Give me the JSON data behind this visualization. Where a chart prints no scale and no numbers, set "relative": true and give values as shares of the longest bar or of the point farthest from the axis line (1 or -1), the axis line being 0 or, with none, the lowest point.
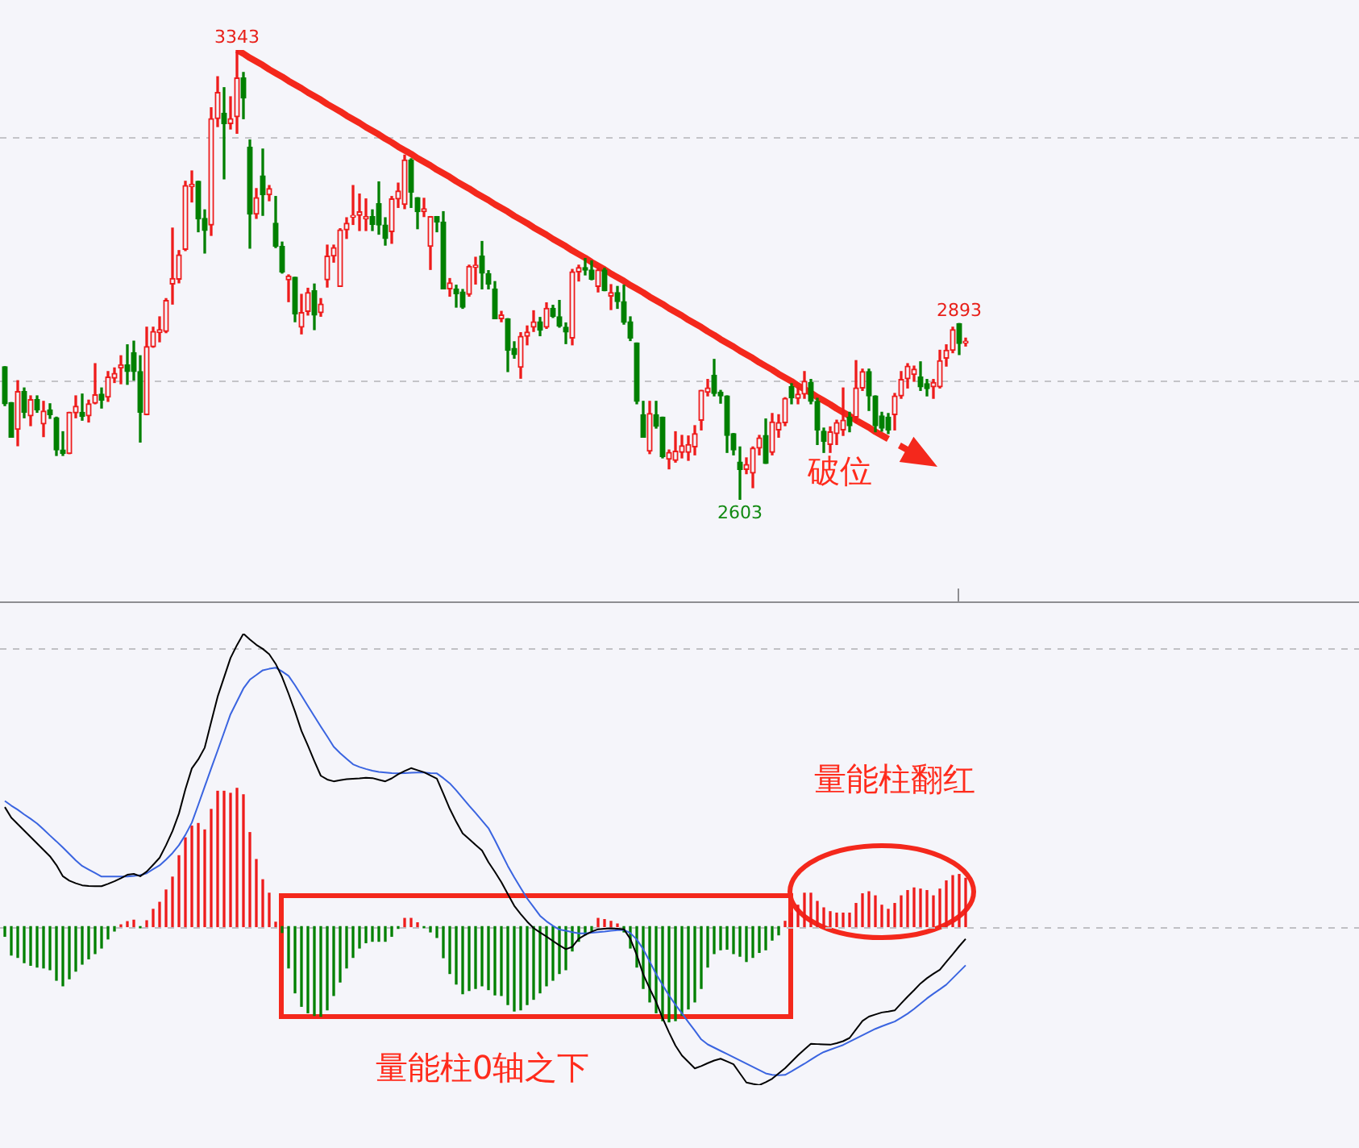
{
  "chart_data": [
    {
      "type": "candlestick",
      "tick_labels": false,
      "grid": "y",
      "categories": [
        null,
        null,
        null,
        null,
        null,
        null,
        null,
        null,
        null,
        null,
        null,
        null,
        null,
        null,
        null,
        null,
        null,
        null,
        null,
        null,
        null,
        null,
        null,
        null,
        null,
        null,
        null,
        null,
        null,
        null,
        null,
        null,
        null,
        null,
        null,
        null,
        null,
        null,
        null,
        null,
        null,
        null,
        null,
        null,
        null,
        null,
        null,
        null,
        null,
        null,
        null,
        null,
        null,
        null,
        null,
        null,
        null,
        null,
        null,
        null,
        null,
        null,
        null,
        null,
        null,
        null,
        null,
        null,
        null,
        null,
        null,
        null,
        null,
        null,
        null,
        null,
        null,
        null,
        null,
        null,
        null,
        null,
        null,
        null,
        null,
        null,
        null,
        null,
        null,
        null,
        null,
        null,
        null,
        null,
        null,
        null,
        null,
        null,
        null,
        null,
        null,
        null,
        null,
        null,
        null,
        null,
        null,
        null,
        null,
        null,
        null,
        null,
        null,
        null,
        null,
        null,
        null,
        null,
        null,
        null,
        null,
        null,
        null,
        null,
        null,
        null,
        null,
        null,
        null,
        null,
        null,
        null,
        null,
        null,
        null,
        null,
        null,
        null,
        null,
        null,
        null,
        null,
        null,
        null,
        null,
        null,
        null,
        null,
        null,
        null
      ],
      "ohlc": [
        [
          2822,
          2822,
          2758,
          2761
        ],
        [
          2763,
          2763,
          2706,
          2706
        ],
        [
          2719,
          2799,
          2692,
          2781
        ],
        [
          2781,
          2787,
          2738,
          2747
        ],
        [
          2741,
          2774,
          2725,
          2768
        ],
        [
          2768,
          2774,
          2747,
          2751
        ],
        [
          2728,
          2765,
          2707,
          2749
        ],
        [
          2751,
          2761,
          2737,
          2743
        ],
        [
          2738,
          2739,
          2676,
          2685
        ],
        [
          2685,
          2715,
          2676,
          2679
        ],
        [
          2679,
          2747,
          2679,
          2747
        ],
        [
          2746,
          2774,
          2738,
          2757
        ],
        [
          2747,
          2777,
          2734,
          2740
        ],
        [
          2741,
          2767,
          2731,
          2761
        ],
        [
          2762,
          2827,
          2761,
          2776
        ],
        [
          2777,
          2787,
          2754,
          2767
        ],
        [
          2772,
          2814,
          2765,
          2805
        ],
        [
          2803,
          2820,
          2796,
          2811
        ],
        [
          2820,
          2840,
          2794,
          2825
        ],
        [
          2825,
          2858,
          2793,
          2814
        ],
        [
          2845,
          2864,
          2800,
          2814
        ],
        [
          2814,
          2840,
          2698,
          2747
        ],
        [
          2743,
          2887,
          2743,
          2855
        ],
        [
          2855,
          2887,
          2854,
          2880
        ],
        [
          2878,
          2904,
          2863,
          2883
        ],
        [
          2880,
          2934,
          2878,
          2931
        ],
        [
          2958,
          3050,
          2925,
          2967
        ],
        [
          2966,
          3013,
          2960,
          3006
        ],
        [
          3015,
          3127,
          3013,
          3120
        ],
        [
          3118,
          3144,
          3093,
          3122
        ],
        [
          3127,
          3127,
          3044,
          3065
        ],
        [
          3066,
          3080,
          3009,
          3046
        ],
        [
          3055,
          3248,
          3038,
          3230
        ],
        [
          3230,
          3299,
          3217,
          3273
        ],
        [
          3239,
          3281,
          3131,
          3222
        ],
        [
          3222,
          3266,
          3213,
          3230
        ],
        [
          3233,
          3343,
          3206,
          3297
        ],
        [
          3297,
          3306,
          3230,
          3264
        ],
        [
          3183,
          3195,
          3017,
          3073
        ],
        [
          3073,
          3115,
          3066,
          3100
        ],
        [
          3136,
          3180,
          3071,
          3105
        ],
        [
          3105,
          3120,
          3095,
          3115
        ],
        [
          3058,
          3102,
          3018,
          3020
        ],
        [
          3020,
          3027,
          2976,
          2978
        ],
        [
          2965,
          2973,
          2929,
          2971
        ],
        [
          2969,
          2969,
          2896,
          2909
        ],
        [
          2887,
          2941,
          2876,
          2911
        ],
        [
          2913,
          2951,
          2907,
          2944
        ],
        [
          2947,
          2958,
          2883,
          2907
        ],
        [
          2911,
          2934,
          2905,
          2925
        ],
        [
          2965,
          3022,
          2953,
          3004
        ],
        [
          3004,
          3022,
          2994,
          3018
        ],
        [
          2954,
          3049,
          2954,
          3047
        ],
        [
          3047,
          3067,
          3033,
          3058
        ],
        [
          3068,
          3120,
          3056,
          3071
        ],
        [
          3071,
          3106,
          3046,
          3077
        ],
        [
          3065,
          3098,
          3046,
          3069
        ],
        [
          3069,
          3080,
          3046,
          3056
        ],
        [
          3090,
          3126,
          3040,
          3055
        ],
        [
          3055,
          3067,
          3022,
          3033
        ],
        [
          3044,
          3102,
          3025,
          3098
        ],
        [
          3098,
          3124,
          3084,
          3111
        ],
        [
          3089,
          3170,
          3082,
          3162
        ],
        [
          3162,
          3164,
          3084,
          3109
        ],
        [
          3100,
          3100,
          3049,
          3077
        ],
        [
          3077,
          3099,
          3069,
          3082
        ],
        [
          3020,
          3069,
          2982,
          3069
        ],
        [
          3069,
          3069,
          3044,
          3060
        ],
        [
          3060,
          3077,
          2950,
          2950
        ],
        [
          2950,
          2967,
          2938,
          2960
        ],
        [
          2950,
          2956,
          2920,
          2942
        ],
        [
          2945,
          2949,
          2918,
          2920
        ],
        [
          2941,
          2989,
          2938,
          2987
        ],
        [
          2985,
          3002,
          2958,
          2989
        ],
        [
          3004,
          3028,
          2950,
          2976
        ],
        [
          2975,
          2980,
          2950,
          2958
        ],
        [
          2950,
          2962,
          2901,
          2901
        ],
        [
          2901,
          2913,
          2896,
          2907
        ],
        [
          2901,
          2901,
          2814,
          2849
        ],
        [
          2852,
          2863,
          2836,
          2842
        ],
        [
          2821,
          2878,
          2803,
          2872
        ],
        [
          2872,
          2889,
          2858,
          2879
        ],
        [
          2887,
          2914,
          2880,
          2896
        ],
        [
          2896,
          2903,
          2873,
          2882
        ],
        [
          2887,
          2927,
          2885,
          2918
        ],
        [
          2918,
          2923,
          2903,
          2905
        ],
        [
          2904,
          2931,
          2887,
          2889
        ],
        [
          2887,
          2894,
          2860,
          2879
        ],
        [
          2869,
          2982,
          2858,
          2978
        ],
        [
          2978,
          2989,
          2963,
          2985
        ],
        [
          2985,
          3000,
          2973,
          2981
        ],
        [
          2981,
          2996,
          2965,
          2966
        ],
        [
          2954,
          2984,
          2945,
          2981
        ],
        [
          2981,
          2984,
          2947,
          2947
        ],
        [
          2938,
          2957,
          2916,
          2944
        ],
        [
          2944,
          2954,
          2918,
          2929
        ],
        [
          2929,
          2956,
          2892,
          2895
        ],
        [
          2896,
          2904,
          2865,
          2869
        ],
        [
          2861,
          2861,
          2761,
          2765
        ],
        [
          2743,
          2765,
          2706,
          2706
        ],
        [
          2683,
          2765,
          2679,
          2745
        ],
        [
          2743,
          2765,
          2721,
          2724
        ],
        [
          2739,
          2739,
          2672,
          2674
        ],
        [
          2670,
          2685,
          2654,
          2681
        ],
        [
          2668,
          2715,
          2665,
          2683
        ],
        [
          2681,
          2709,
          2672,
          2692
        ],
        [
          2681,
          2708,
          2668,
          2694
        ],
        [
          2690,
          2725,
          2677,
          2712
        ],
        [
          2734,
          2783,
          2718,
          2783
        ],
        [
          2780,
          2801,
          2774,
          2787
        ],
        [
          2808,
          2834,
          2774,
          2778
        ],
        [
          2780,
          2783,
          2762,
          2774
        ],
        [
          2774,
          2774,
          2681,
          2709
        ],
        [
          2712,
          2712,
          2677,
          2685
        ],
        [
          2665,
          2690,
          2603,
          2653
        ],
        [
          2653,
          2672,
          2646,
          2661
        ],
        [
          2647,
          2690,
          2623,
          2688
        ],
        [
          2688,
          2709,
          2677,
          2705
        ],
        [
          2709,
          2736,
          2663,
          2663
        ],
        [
          2681,
          2745,
          2677,
          2731
        ],
        [
          2718,
          2743,
          2706,
          2730
        ],
        [
          2730,
          2771,
          2725,
          2770
        ],
        [
          2789,
          2794,
          2761,
          2771
        ],
        [
          2770,
          2787,
          2761,
          2777
        ],
        [
          2777,
          2814,
          2770,
          2798
        ],
        [
          2796,
          2801,
          2761,
          2765
        ],
        [
          2765,
          2770,
          2694,
          2718
        ],
        [
          2716,
          2721,
          2681,
          2699
        ],
        [
          2694,
          2723,
          2681,
          2715
        ],
        [
          2712,
          2734,
          2694,
          2730
        ],
        [
          2718,
          2787,
          2709,
          2734
        ],
        [
          2739,
          2747,
          2715,
          2725
        ],
        [
          2739,
          2832,
          2730,
          2787
        ],
        [
          2787,
          2818,
          2783,
          2814
        ],
        [
          2814,
          2818,
          2750,
          2774
        ],
        [
          2774,
          2774,
          2715,
          2725
        ],
        [
          2741,
          2747,
          2716,
          2721
        ],
        [
          2739,
          2745,
          2712,
          2718
        ],
        [
          2743,
          2778,
          2718,
          2774
        ],
        [
          2774,
          2814,
          2770,
          2801
        ],
        [
          2802,
          2827,
          2787,
          2823
        ],
        [
          2809,
          2823,
          2798,
          2818
        ],
        [
          2805,
          2830,
          2783,
          2789
        ],
        [
          2794,
          2801,
          2774,
          2786
        ],
        [
          2789,
          2801,
          2770,
          2796
        ],
        [
          2789,
          2849,
          2787,
          2832
        ],
        [
          2836,
          2858,
          2823,
          2849
        ],
        [
          2849,
          2887,
          2845,
          2883
        ],
        [
          2893,
          2893,
          2842,
          2860
        ],
        [
          2861,
          2869,
          2856,
          2864
        ]
      ],
      "colors": [
        "#008000",
        "#008000",
        "#ee1c1c",
        "#008000",
        "#ee1c1c",
        "#008000",
        "#ee1c1c",
        "#008000",
        "#008000",
        "#008000",
        "#ee1c1c",
        "#ee1c1c",
        "#008000",
        "#ee1c1c",
        "#ee1c1c",
        "#008000",
        "#ee1c1c",
        "#ee1c1c",
        "#ee1c1c",
        "#008000",
        "#008000",
        "#008000",
        "#ee1c1c",
        "#ee1c1c",
        "#ee1c1c",
        "#ee1c1c",
        "#ee1c1c",
        "#ee1c1c",
        "#ee1c1c",
        "#ee1c1c",
        "#008000",
        "#008000",
        "#ee1c1c",
        "#ee1c1c",
        "#008000",
        "#ee1c1c",
        "#ee1c1c",
        "#008000",
        "#008000",
        "#ee1c1c",
        "#008000",
        "#ee1c1c",
        "#008000",
        "#008000",
        "#ee1c1c",
        "#008000",
        "#ee1c1c",
        "#ee1c1c",
        "#008000",
        "#ee1c1c",
        "#ee1c1c",
        "#ee1c1c",
        "#ee1c1c",
        "#ee1c1c",
        "#ee1c1c",
        "#ee1c1c",
        "#ee1c1c",
        "#008000",
        "#008000",
        "#008000",
        "#ee1c1c",
        "#ee1c1c",
        "#ee1c1c",
        "#008000",
        "#008000",
        "#ee1c1c",
        "#ee1c1c",
        "#008000",
        "#008000",
        "#ee1c1c",
        "#008000",
        "#008000",
        "#ee1c1c",
        "#ee1c1c",
        "#008000",
        "#008000",
        "#008000",
        "#ee1c1c",
        "#008000",
        "#008000",
        "#ee1c1c",
        "#ee1c1c",
        "#ee1c1c",
        "#008000",
        "#ee1c1c",
        "#008000",
        "#008000",
        "#008000",
        "#ee1c1c",
        "#ee1c1c",
        "#008000",
        "#008000",
        "#ee1c1c",
        "#008000",
        "#ee1c1c",
        "#008000",
        "#008000",
        "#008000",
        "#008000",
        "#008000",
        "#ee1c1c",
        "#008000",
        "#008000",
        "#ee1c1c",
        "#ee1c1c",
        "#ee1c1c",
        "#ee1c1c",
        "#ee1c1c",
        "#ee1c1c",
        "#ee1c1c",
        "#008000",
        "#008000",
        "#008000",
        "#008000",
        "#008000",
        "#ee1c1c",
        "#ee1c1c",
        "#ee1c1c",
        "#008000",
        "#ee1c1c",
        "#ee1c1c",
        "#ee1c1c",
        "#008000",
        "#ee1c1c",
        "#ee1c1c",
        "#008000",
        "#008000",
        "#008000",
        "#ee1c1c",
        "#ee1c1c",
        "#ee1c1c",
        "#008000",
        "#ee1c1c",
        "#ee1c1c",
        "#008000",
        "#008000",
        "#008000",
        "#008000",
        "#ee1c1c",
        "#ee1c1c",
        "#ee1c1c",
        "#ee1c1c",
        "#008000",
        "#008000",
        "#ee1c1c",
        "#ee1c1c",
        "#ee1c1c",
        "#ee1c1c",
        "#008000",
        "#ee1c1c"
      ],
      "series": [
        {
          "type": "line",
          "color": "#f4281c",
          "values": [
            null,
            null,
            null,
            null,
            null,
            null,
            null,
            null,
            null,
            null,
            null,
            null,
            null,
            null,
            null,
            null,
            null,
            null,
            null,
            null,
            null,
            null,
            null,
            null,
            null,
            null,
            null,
            null,
            null,
            null,
            null,
            null,
            null,
            null,
            null,
            null,
            3343,
            3337,
            3330,
            3324,
            3318,
            3311,
            3305,
            3299,
            3292,
            3286,
            3280,
            3273,
            3267,
            3261,
            3254,
            3248,
            3242,
            3235,
            3229,
            3223,
            3216,
            3210,
            3204,
            3197,
            3191,
            3184,
            3178,
            3172,
            3165,
            3159,
            3153,
            3146,
            3140,
            3134,
            3127,
            3121,
            3115,
            3108,
            3102,
            3096,
            3089,
            3083,
            3077,
            3070,
            3064,
            3058,
            3051,
            3045,
            3039,
            3032,
            3026,
            3020,
            3013,
            3007,
            3001,
            2994,
            2988,
            2982,
            2975,
            2969,
            2963,
            2956,
            2950,
            2944,
            2937,
            2931,
            2925,
            2918,
            2912,
            2906,
            2899,
            2893,
            2887,
            2880,
            2874,
            2867,
            2861,
            2855,
            2848,
            2842,
            2836,
            2829,
            2823,
            2817,
            2810,
            2804,
            2798,
            2791,
            2785,
            2779,
            2772,
            2766,
            2760,
            2753,
            2747,
            2741,
            2734,
            2728,
            2722,
            2715,
            2709,
            2703,
            null,
            null,
            null,
            null,
            null,
            null,
            null,
            null,
            null,
            null,
            null,
            null
          ]
        }
      ],
      "yticks": [
        {
          "value": 3200,
          "label": null
        },
        {
          "value": 2800,
          "label": null
        }
      ],
      "annotations": [
        {
          "text": "3343",
          "y": 3343
        },
        {
          "text": "2603",
          "y": 2603
        },
        {
          "text": "2893",
          "y": 2893
        },
        "破位"
      ]
    },
    {
      "type": "bar",
      "relative": true,
      "tick_labels": false,
      "categories": [
        null,
        null,
        null,
        null,
        null,
        null,
        null,
        null,
        null,
        null,
        null,
        null,
        null,
        null,
        null,
        null,
        null,
        null,
        null,
        null,
        null,
        null,
        null,
        null,
        null,
        null,
        null,
        null,
        null,
        null,
        null,
        null,
        null,
        null,
        null,
        null,
        null,
        null,
        null,
        null,
        null,
        null,
        null,
        null,
        null,
        null,
        null,
        null,
        null,
        null,
        null,
        null,
        null,
        null,
        null,
        null,
        null,
        null,
        null,
        null,
        null,
        null,
        null,
        null,
        null,
        null,
        null,
        null,
        null,
        null,
        null,
        null,
        null,
        null,
        null,
        null,
        null,
        null,
        null,
        null,
        null,
        null,
        null,
        null,
        null,
        null,
        null,
        null,
        null,
        null,
        null,
        null,
        null,
        null,
        null,
        null,
        null,
        null,
        null,
        null,
        null,
        null,
        null,
        null,
        null,
        null,
        null,
        null,
        null,
        null,
        null,
        null,
        null,
        null,
        null,
        null,
        null,
        null,
        null,
        null,
        null,
        null,
        null,
        null,
        null,
        null,
        null,
        null,
        null,
        null,
        null,
        null,
        null,
        null,
        null,
        null,
        null,
        null,
        null,
        null,
        null,
        null,
        null,
        null,
        null,
        null,
        null,
        null,
        null,
        null
      ],
      "series": [
        {
          "type": "bar",
          "values": [
            -0.033,
            -0.097,
            -0.105,
            -0.123,
            -0.132,
            -0.138,
            -0.141,
            -0.147,
            -0.183,
            -0.202,
            -0.178,
            -0.152,
            -0.128,
            -0.11,
            -0.092,
            -0.073,
            -0.042,
            -0.015,
            0.006,
            0.017,
            0.022,
            -0.004,
            0.02,
            0.059,
            0.083,
            0.125,
            0.169,
            0.242,
            0.303,
            0.343,
            0.352,
            0.33,
            0.4,
            0.462,
            0.462,
            0.455,
            0.472,
            0.45,
            0.321,
            0.229,
            0.16,
            0.114,
            0.015,
            -0.02,
            -0.141,
            -0.226,
            -0.272,
            -0.294,
            -0.303,
            -0.306,
            -0.284,
            -0.235,
            -0.189,
            -0.141,
            -0.105,
            -0.073,
            -0.055,
            -0.05,
            -0.05,
            -0.05,
            -0.033,
            -0.006,
            0.028,
            0.028,
            0.013,
            -0.004,
            -0.018,
            -0.037,
            -0.106,
            -0.16,
            -0.196,
            -0.229,
            -0.218,
            -0.211,
            -0.202,
            -0.215,
            -0.233,
            -0.235,
            -0.266,
            -0.288,
            -0.284,
            -0.266,
            -0.248,
            -0.226,
            -0.202,
            -0.183,
            -0.16,
            -0.147,
            -0.083,
            -0.05,
            -0.028,
            -0.013,
            0.028,
            0.024,
            0.018,
            0.009,
            -0.018,
            -0.073,
            -0.138,
            -0.211,
            -0.257,
            -0.294,
            -0.321,
            -0.325,
            -0.321,
            -0.303,
            -0.281,
            -0.257,
            -0.211,
            -0.138,
            -0.092,
            -0.079,
            -0.077,
            -0.092,
            -0.101,
            -0.119,
            -0.105,
            -0.088,
            -0.079,
            -0.046,
            -0.028,
            0.018,
            0.046,
            0.073,
            0.114,
            0.114,
            0.086,
            0.064,
            0.051,
            0.046,
            0.046,
            0.046,
            0.079,
            0.112,
            0.119,
            0.105,
            0.073,
            0.059,
            0.079,
            0.105,
            0.123,
            0.132,
            0.128,
            0.123,
            0.105,
            0.128,
            0.156,
            0.174,
            0.178,
            0.165
          ],
          "colors": [
            "#008000",
            "#008000",
            "#008000",
            "#008000",
            "#008000",
            "#008000",
            "#008000",
            "#008000",
            "#008000",
            "#008000",
            "#008000",
            "#008000",
            "#008000",
            "#008000",
            "#008000",
            "#008000",
            "#008000",
            "#008000",
            "#ee1c1c",
            "#ee1c1c",
            "#ee1c1c",
            "#008000",
            "#ee1c1c",
            "#ee1c1c",
            "#ee1c1c",
            "#ee1c1c",
            "#ee1c1c",
            "#ee1c1c",
            "#ee1c1c",
            "#ee1c1c",
            "#ee1c1c",
            "#ee1c1c",
            "#ee1c1c",
            "#ee1c1c",
            "#ee1c1c",
            "#ee1c1c",
            "#ee1c1c",
            "#ee1c1c",
            "#ee1c1c",
            "#ee1c1c",
            "#ee1c1c",
            "#ee1c1c",
            "#ee1c1c",
            "#008000",
            "#008000",
            "#008000",
            "#008000",
            "#008000",
            "#008000",
            "#008000",
            "#008000",
            "#008000",
            "#008000",
            "#008000",
            "#008000",
            "#008000",
            "#008000",
            "#008000",
            "#008000",
            "#008000",
            "#008000",
            "#008000",
            "#ee1c1c",
            "#ee1c1c",
            "#ee1c1c",
            "#008000",
            "#008000",
            "#008000",
            "#008000",
            "#008000",
            "#008000",
            "#008000",
            "#008000",
            "#008000",
            "#008000",
            "#008000",
            "#008000",
            "#008000",
            "#008000",
            "#008000",
            "#008000",
            "#008000",
            "#008000",
            "#008000",
            "#008000",
            "#008000",
            "#008000",
            "#008000",
            "#008000",
            "#008000",
            "#008000",
            "#008000",
            "#ee1c1c",
            "#ee1c1c",
            "#ee1c1c",
            "#ee1c1c",
            "#008000",
            "#008000",
            "#008000",
            "#008000",
            "#008000",
            "#008000",
            "#008000",
            "#008000",
            "#008000",
            "#008000",
            "#008000",
            "#008000",
            "#008000",
            "#008000",
            "#008000",
            "#008000",
            "#008000",
            "#008000",
            "#008000",
            "#008000",
            "#008000",
            "#008000",
            "#008000",
            "#008000",
            "#008000",
            "#ee1c1c",
            "#ee1c1c",
            "#ee1c1c",
            "#ee1c1c",
            "#ee1c1c",
            "#ee1c1c",
            "#ee1c1c",
            "#ee1c1c",
            "#ee1c1c",
            "#ee1c1c",
            "#ee1c1c",
            "#ee1c1c",
            "#ee1c1c",
            "#ee1c1c",
            "#ee1c1c",
            "#ee1c1c",
            "#ee1c1c",
            "#ee1c1c",
            "#ee1c1c",
            "#ee1c1c",
            "#ee1c1c",
            "#ee1c1c",
            "#ee1c1c",
            "#ee1c1c",
            "#ee1c1c",
            "#ee1c1c",
            "#ee1c1c",
            "#ee1c1c",
            "#ee1c1c"
          ]
        },
        {
          "type": "line",
          "color": "#000000",
          "values": [
            0.408,
            0.372,
            0.35,
            0.328,
            0.306,
            0.284,
            0.262,
            0.24,
            0.21,
            0.172,
            0.157,
            0.148,
            0.141,
            0.139,
            0.138,
            0.138,
            0.146,
            0.155,
            0.165,
            0.177,
            0.18,
            0.172,
            0.188,
            0.211,
            0.235,
            0.278,
            0.326,
            0.386,
            0.469,
            0.54,
            0.571,
            0.611,
            0.699,
            0.785,
            0.851,
            0.917,
            0.961,
            1,
            0.98,
            0.962,
            0.948,
            0.93,
            0.897,
            0.852,
            0.795,
            0.734,
            0.668,
            0.618,
            0.565,
            0.515,
            0.502,
            0.496,
            0.5,
            0.503,
            0.505,
            0.506,
            0.508,
            0.507,
            0.501,
            0.496,
            0.506,
            0.52,
            0.531,
            0.541,
            0.534,
            0.527,
            0.516,
            0.505,
            0.454,
            0.402,
            0.358,
            0.318,
            0.299,
            0.279,
            0.26,
            0.22,
            0.187,
            0.152,
            0.111,
            0.071,
            0.043,
            0.017,
            -0.005,
            -0.02,
            -0.034,
            -0.049,
            -0.064,
            -0.077,
            -0.069,
            -0.041,
            -0.028,
            -0.017,
            -0.009,
            -0.007,
            -0.006,
            -0.007,
            -0.009,
            -0.042,
            -0.097,
            -0.163,
            -0.211,
            -0.257,
            -0.312,
            -0.361,
            -0.406,
            -0.44,
            -0.462,
            -0.484,
            -0.476,
            -0.466,
            -0.457,
            -0.451,
            -0.46,
            -0.47,
            -0.501,
            -0.532,
            -0.537,
            -0.541,
            -0.531,
            -0.519,
            -0.501,
            -0.483,
            -0.461,
            -0.439,
            -0.419,
            -0.4,
            -0.401,
            -0.402,
            -0.403,
            -0.398,
            -0.391,
            -0.38,
            -0.351,
            -0.322,
            -0.307,
            -0.3,
            -0.293,
            -0.29,
            -0.286,
            -0.262,
            -0.239,
            -0.217,
            -0.194,
            -0.176,
            -0.161,
            -0.147,
            -0.12,
            -0.094,
            -0.067,
            -0.042
          ]
        },
        {
          "type": "line",
          "color": "#3a64e0",
          "values": [
            0.429,
            0.413,
            0.399,
            0.383,
            0.368,
            0.352,
            0.332,
            0.311,
            0.291,
            0.27,
            0.248,
            0.226,
            0.207,
            0.195,
            0.183,
            0.171,
            0.171,
            0.171,
            0.171,
            0.171,
            0.173,
            0.176,
            0.182,
            0.196,
            0.209,
            0.229,
            0.251,
            0.278,
            0.313,
            0.355,
            0.416,
            0.478,
            0.54,
            0.601,
            0.663,
            0.725,
            0.769,
            0.813,
            0.843,
            0.859,
            0.875,
            0.88,
            0.884,
            0.871,
            0.856,
            0.824,
            0.789,
            0.753,
            0.718,
            0.683,
            0.649,
            0.614,
            0.592,
            0.573,
            0.554,
            0.545,
            0.538,
            0.532,
            0.528,
            0.526,
            0.524,
            0.523,
            0.524,
            0.525,
            0.526,
            0.526,
            0.524,
            0.523,
            0.507,
            0.489,
            0.465,
            0.439,
            0.413,
            0.388,
            0.362,
            0.336,
            0.295,
            0.251,
            0.207,
            0.168,
            0.132,
            0.096,
            0.067,
            0.037,
            0.018,
            0.003,
            -0.01,
            -0.014,
            -0.019,
            -0.023,
            -0.023,
            -0.021,
            -0.019,
            -0.017,
            -0.014,
            -0.012,
            -0.011,
            -0.022,
            -0.044,
            -0.077,
            -0.119,
            -0.162,
            -0.199,
            -0.235,
            -0.267,
            -0.296,
            -0.326,
            -0.355,
            -0.385,
            -0.402,
            -0.413,
            -0.424,
            -0.435,
            -0.446,
            -0.457,
            -0.468,
            -0.479,
            -0.49,
            -0.501,
            -0.506,
            -0.507,
            -0.506,
            -0.494,
            -0.481,
            -0.468,
            -0.454,
            -0.44,
            -0.428,
            -0.42,
            -0.412,
            -0.404,
            -0.393,
            -0.382,
            -0.371,
            -0.36,
            -0.349,
            -0.34,
            -0.332,
            -0.324,
            -0.311,
            -0.297,
            -0.281,
            -0.263,
            -0.245,
            -0.229,
            -0.214,
            -0.198,
            -0.176,
            -0.154,
            -0.132
          ]
        }
      ],
      "ref_lines": [
        {
          "axis": "y",
          "value": 0,
          "color": "#c0c0c4",
          "line_style": "dashed"
        },
        {
          "axis": "y",
          "value": 0.95,
          "color": "#c0c0c4",
          "line_style": "dashed"
        }
      ],
      "annotations": [
        "量能柱翻红",
        "量能柱0轴之下"
      ]
    }
  ]
}
